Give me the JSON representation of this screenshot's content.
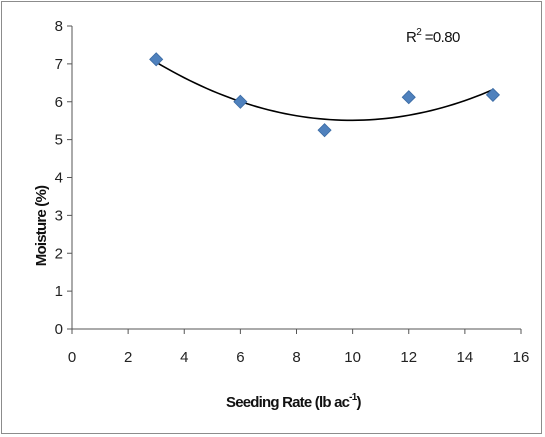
{
  "chart_data": {
    "type": "scatter",
    "title": "",
    "xlabel": "Seeding Rate (lb ac",
    "xlabel_sup": "-1",
    "xlabel_close": ")",
    "ylabel": "Moisture (%)",
    "xlim": [
      0,
      16
    ],
    "ylim": [
      0,
      8
    ],
    "x_ticks": [
      "0",
      "2",
      "4",
      "6",
      "8",
      "10",
      "12",
      "14",
      "16"
    ],
    "y_ticks": [
      "0",
      "1",
      "2",
      "3",
      "4",
      "5",
      "6",
      "7",
      "8"
    ],
    "grid": false,
    "legend": "none",
    "marker_color": "#4f81bd",
    "trendline": {
      "kind": "quadratic",
      "color": "#000000",
      "points": [
        [
          3,
          7.05
        ],
        [
          6,
          6.0
        ],
        [
          9,
          5.53
        ],
        [
          10,
          5.48
        ],
        [
          12,
          5.7
        ],
        [
          15,
          6.3
        ]
      ]
    },
    "annotation": {
      "text": "R",
      "sup": "2",
      "rest": " =0.80"
    },
    "series": [
      {
        "x": [
          3,
          6,
          9,
          12,
          15
        ],
        "y": [
          7.12,
          6.0,
          5.25,
          6.12,
          6.18
        ]
      }
    ]
  }
}
